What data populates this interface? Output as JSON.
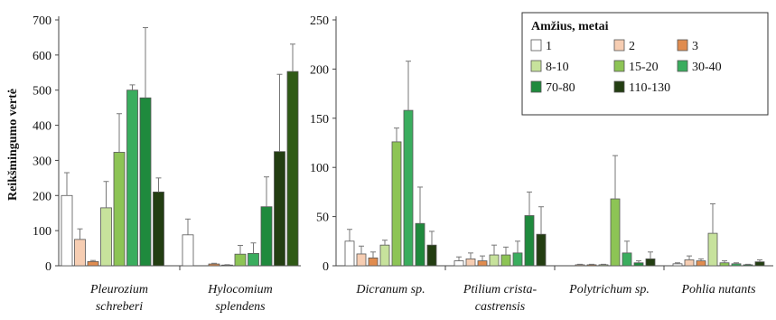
{
  "ylabel": "Reikšmingumo vertė",
  "legend": {
    "title": "Amžius, metai"
  },
  "series_styles": [
    {
      "name": "1",
      "fill": "#ffffff"
    },
    {
      "name": "2",
      "fill": "#f6cdb2"
    },
    {
      "name": "3",
      "fill": "#e08c4f"
    },
    {
      "name": "8-10",
      "fill": "#c7e29c"
    },
    {
      "name": "15-20",
      "fill": "#8dc455"
    },
    {
      "name": "30-40",
      "fill": "#3aad5e"
    },
    {
      "name": "70-80",
      "fill": "#1f8a3d"
    },
    {
      "name": "110-130",
      "fill": "#233e12"
    }
  ],
  "chart_data": [
    {
      "type": "bar",
      "categories": [
        "Pleurozium schreberi",
        "Hylocomium splendens"
      ],
      "category_lines": [
        [
          "Pleurozium",
          "schreberi"
        ],
        [
          "Hylocomium",
          "splendens"
        ]
      ],
      "ylim": [
        0,
        700
      ],
      "yticks": [
        0,
        100,
        200,
        300,
        400,
        500,
        600,
        700
      ],
      "series": [
        {
          "name": "1",
          "values": [
            200,
            88
          ],
          "errors": [
            65,
            45
          ]
        },
        {
          "name": "2",
          "values": [
            75,
            0
          ],
          "errors": [
            30,
            0
          ]
        },
        {
          "name": "3",
          "values": [
            12,
            5
          ],
          "errors": [
            3,
            2
          ]
        },
        {
          "name": "8-10",
          "values": [
            165,
            2
          ],
          "errors": [
            75,
            1
          ]
        },
        {
          "name": "15-20",
          "values": [
            323,
            33
          ],
          "errors": [
            110,
            25
          ]
        },
        {
          "name": "30-40",
          "values": [
            500,
            35
          ],
          "errors": [
            15,
            30
          ]
        },
        {
          "name": "70-80",
          "values": [
            478,
            168
          ],
          "errors": [
            200,
            85
          ]
        },
        {
          "name": "110-130",
          "values": [
            210,
            325
          ],
          "errors": [
            40,
            220
          ]
        },
        {
          "name": "",
          "values": [
            0,
            553
          ],
          "errors": [
            0,
            78
          ]
        }
      ]
    },
    {
      "type": "bar",
      "categories": [
        "Dicranum sp.",
        "Ptilium crista-castrensis",
        "Polytrichum sp.",
        "Pohlia nutants"
      ],
      "category_lines": [
        [
          "Dicranum sp."
        ],
        [
          "Ptilium crista-",
          "castrensis"
        ],
        [
          "Polytrichum sp."
        ],
        [
          "Pohlia nutants"
        ]
      ],
      "ylim": [
        0,
        250
      ],
      "yticks": [
        0,
        50,
        100,
        150,
        200,
        250
      ],
      "series": [
        {
          "name": "1",
          "values": [
            25,
            5,
            0,
            2
          ],
          "errors": [
            12,
            4,
            0,
            1
          ]
        },
        {
          "name": "2",
          "values": [
            12,
            7,
            1,
            6
          ],
          "errors": [
            8,
            6,
            0.5,
            4
          ]
        },
        {
          "name": "3",
          "values": [
            8,
            5,
            1,
            5
          ],
          "errors": [
            6,
            5,
            0.5,
            2
          ]
        },
        {
          "name": "8-10",
          "values": [
            21,
            11,
            1,
            33
          ],
          "errors": [
            5,
            10,
            0.5,
            30
          ]
        },
        {
          "name": "15-20",
          "values": [
            126,
            11,
            68,
            3
          ],
          "errors": [
            14,
            8,
            44,
            2
          ]
        },
        {
          "name": "30-40",
          "values": [
            158,
            13,
            13,
            2
          ],
          "errors": [
            50,
            12,
            12,
            1
          ]
        },
        {
          "name": "70-80",
          "values": [
            43,
            51,
            3,
            1
          ],
          "errors": [
            37,
            24,
            2,
            0.5
          ]
        },
        {
          "name": "110-130",
          "values": [
            21,
            32,
            7,
            4
          ],
          "errors": [
            14,
            28,
            7,
            2
          ]
        }
      ]
    }
  ]
}
